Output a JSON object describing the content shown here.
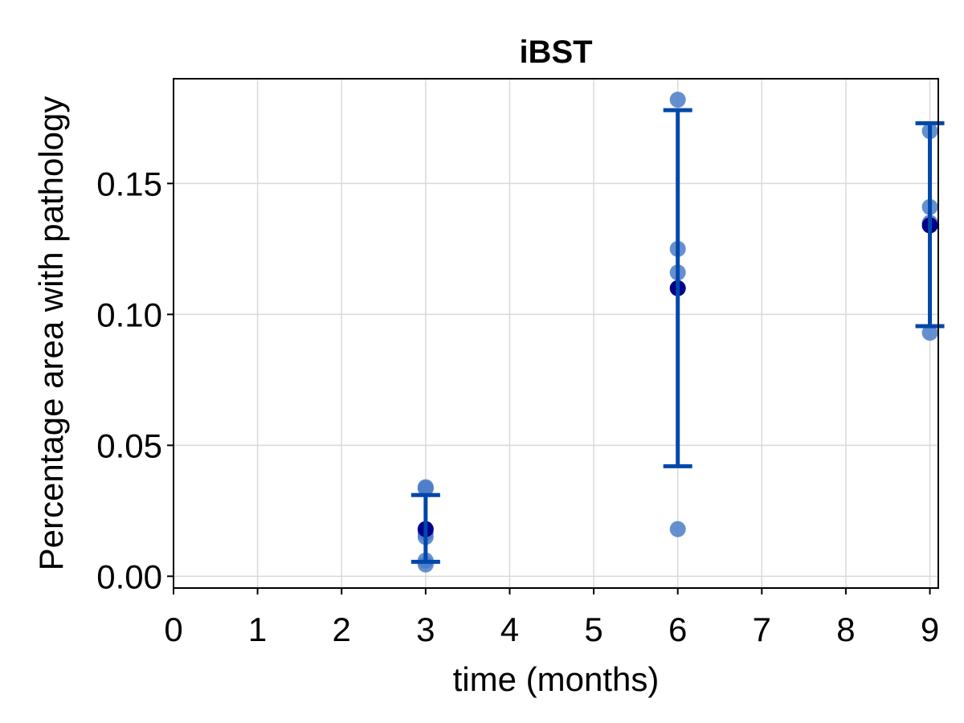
{
  "chart_data": {
    "type": "scatter",
    "title": "iBST",
    "xlabel": "time (months)",
    "ylabel": "Percentage area with pathology",
    "xlim": [
      0,
      9.1
    ],
    "ylim": [
      -0.0045,
      0.19
    ],
    "xticks": [
      0,
      1,
      2,
      3,
      4,
      5,
      6,
      7,
      8,
      9
    ],
    "yticks": [
      0.0,
      0.05,
      0.1,
      0.15
    ],
    "ytick_labels": [
      "0.00",
      "0.05",
      "0.10",
      "0.15"
    ],
    "grid": true,
    "colors": {
      "points": "#4a7cc7",
      "mean": "#00008b",
      "errorbar": "#0047ab",
      "grid": "#d9d9d9",
      "frame": "#000000"
    },
    "series": [
      {
        "kind": "individual",
        "x": [
          3,
          3,
          3,
          3,
          3,
          3,
          6,
          6,
          6,
          6,
          9,
          9,
          9,
          9
        ],
        "y": [
          0.034,
          0.0335,
          0.0165,
          0.015,
          0.006,
          0.0045,
          0.182,
          0.125,
          0.116,
          0.018,
          0.17,
          0.141,
          0.135,
          0.093
        ]
      },
      {
        "kind": "mean_sd",
        "x": [
          3,
          6,
          9
        ],
        "mean": [
          0.018,
          0.11,
          0.134
        ],
        "lower": [
          0.0055,
          0.042,
          0.0955
        ],
        "upper": [
          0.031,
          0.178,
          0.173
        ]
      }
    ]
  }
}
